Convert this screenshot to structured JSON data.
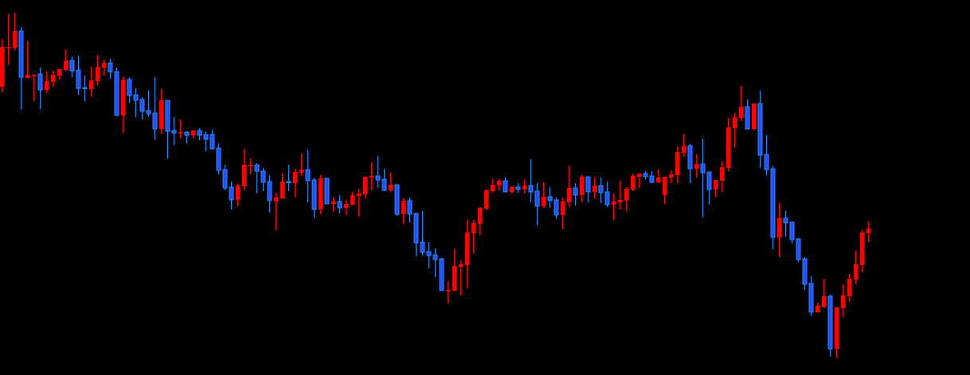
{
  "chart_data": {
    "type": "candlestick",
    "title": "",
    "xlabel": "",
    "ylabel": "",
    "axes_visible": false,
    "grid": false,
    "ylim": [
      29,
      500
    ],
    "background": "#000000",
    "colors": {
      "bullish_body": "#ff0000",
      "bullish_wick": "#ff0000",
      "bearish_body": "#2a4cff",
      "bearish_outline": "#1e8fff",
      "bearish_wick": "#1e8fff"
    },
    "ohlc_fields": [
      "open",
      "high",
      "low",
      "close"
    ],
    "candles": [
      [
        391,
        451,
        384,
        441
      ],
      [
        441,
        482,
        419,
        441
      ],
      [
        440,
        484,
        437,
        461
      ],
      [
        461,
        466,
        362,
        403
      ],
      [
        402,
        448,
        402,
        406
      ],
      [
        405,
        407,
        373,
        406
      ],
      [
        407,
        415,
        363,
        387
      ],
      [
        387,
        410,
        383,
        398
      ],
      [
        397,
        411,
        391,
        406
      ],
      [
        405,
        413,
        400,
        413
      ],
      [
        412,
        438,
        411,
        424
      ],
      [
        424,
        429,
        403,
        411
      ],
      [
        412,
        430,
        381,
        389
      ],
      [
        390,
        405,
        373,
        389
      ],
      [
        388,
        416,
        379,
        399
      ],
      [
        398,
        431,
        393,
        416
      ],
      [
        415,
        425,
        405,
        421
      ],
      [
        421,
        426,
        401,
        410
      ],
      [
        410,
        415,
        355,
        355
      ],
      [
        355,
        404,
        333,
        400
      ],
      [
        400,
        403,
        371,
        380
      ],
      [
        381,
        389,
        353,
        374
      ],
      [
        375,
        378,
        350,
        360
      ],
      [
        361,
        386,
        353,
        357
      ],
      [
        358,
        403,
        324,
        338
      ],
      [
        338,
        388,
        332,
        374
      ],
      [
        374,
        374,
        301,
        335
      ],
      [
        336,
        353,
        318,
        333
      ],
      [
        334,
        350,
        326,
        334
      ],
      [
        334,
        335,
        320,
        330
      ],
      [
        330,
        337,
        327,
        336
      ],
      [
        336,
        339,
        324,
        330
      ],
      [
        331,
        335,
        310,
        325
      ],
      [
        331,
        337,
        313,
        313
      ],
      [
        314,
        320,
        281,
        286
      ],
      [
        287,
        293,
        261,
        264
      ],
      [
        265,
        272,
        237,
        249
      ],
      [
        249,
        269,
        241,
        267
      ],
      [
        266,
        313,
        261,
        293
      ],
      [
        293,
        301,
        281,
        293
      ],
      [
        293,
        295,
        257,
        285
      ],
      [
        285,
        289,
        260,
        271
      ],
      [
        272,
        280,
        233,
        248
      ],
      [
        247,
        258,
        211,
        252
      ],
      [
        251,
        283,
        250,
        272
      ],
      [
        272,
        293,
        260,
        271
      ],
      [
        270,
        288,
        252,
        284
      ],
      [
        283,
        307,
        279,
        287
      ],
      [
        287,
        312,
        246,
        273
      ],
      [
        274,
        276,
        226,
        237
      ],
      [
        237,
        280,
        231,
        276
      ],
      [
        276,
        276,
        244,
        244
      ],
      [
        244,
        252,
        234,
        247
      ],
      [
        247,
        255,
        232,
        239
      ],
      [
        239,
        249,
        230,
        244
      ],
      [
        243,
        259,
        242,
        255
      ],
      [
        254,
        263,
        228,
        257
      ],
      [
        256,
        278,
        251,
        278
      ],
      [
        277,
        296,
        261,
        279
      ],
      [
        279,
        304,
        264,
        274
      ],
      [
        275,
        288,
        260,
        261
      ],
      [
        261,
        283,
        259,
        268
      ],
      [
        268,
        268,
        229,
        231
      ],
      [
        231,
        251,
        219,
        248
      ],
      [
        248,
        252,
        221,
        231
      ],
      [
        232,
        232,
        178,
        195
      ],
      [
        196,
        235,
        179,
        183
      ],
      [
        184,
        196,
        163,
        179
      ],
      [
        180,
        188,
        152,
        174
      ],
      [
        175,
        176,
        135,
        135
      ],
      [
        136,
        147,
        119,
        136
      ],
      [
        135,
        187,
        134,
        166
      ],
      [
        165,
        173,
        129,
        168
      ],
      [
        167,
        224,
        138,
        208
      ],
      [
        207,
        224,
        182,
        220
      ],
      [
        219,
        240,
        205,
        239
      ],
      [
        238,
        262,
        236,
        261
      ],
      [
        260,
        275,
        258,
        268
      ],
      [
        267,
        275,
        261,
        273
      ],
      [
        273,
        277,
        259,
        259
      ],
      [
        259,
        266,
        257,
        265
      ],
      [
        265,
        270,
        258,
        262
      ],
      [
        262,
        275,
        257,
        267
      ],
      [
        267,
        300,
        246,
        259
      ],
      [
        260,
        270,
        217,
        241
      ],
      [
        241,
        271,
        239,
        253
      ],
      [
        253,
        265,
        239,
        248
      ],
      [
        249,
        252,
        225,
        230
      ],
      [
        230,
        252,
        212,
        247
      ],
      [
        246,
        292,
        240,
        264
      ],
      [
        264,
        270,
        242,
        255
      ],
      [
        255,
        280,
        246,
        278
      ],
      [
        278,
        278,
        246,
        259
      ],
      [
        259,
        278,
        251,
        267
      ],
      [
        267,
        277,
        245,
        258
      ],
      [
        259,
        272,
        240,
        243
      ],
      [
        243,
        257,
        224,
        247
      ],
      [
        246,
        273,
        237,
        249
      ],
      [
        248,
        265,
        235,
        263
      ],
      [
        262,
        282,
        260,
        279
      ],
      [
        278,
        282,
        264,
        282
      ],
      [
        282,
        285,
        275,
        278
      ],
      [
        279,
        285,
        270,
        271
      ],
      [
        271,
        287,
        270,
        277
      ],
      [
        255,
        278,
        244,
        278
      ],
      [
        277,
        286,
        270,
        281
      ],
      [
        280,
        316,
        270,
        309
      ],
      [
        308,
        332,
        303,
        317
      ],
      [
        317,
        319,
        270,
        288
      ],
      [
        288,
        306,
        277,
        294
      ],
      [
        294,
        326,
        227,
        283
      ],
      [
        284,
        284,
        243,
        262
      ],
      [
        262,
        274,
        252,
        274
      ],
      [
        273,
        297,
        259,
        290
      ],
      [
        289,
        352,
        285,
        340
      ],
      [
        339,
        358,
        315,
        353
      ],
      [
        352,
        392,
        348,
        366
      ],
      [
        366,
        375,
        338,
        338
      ],
      [
        338,
        370,
        336,
        370
      ],
      [
        370,
        386,
        289,
        305
      ],
      [
        306,
        330,
        280,
        287
      ],
      [
        288,
        292,
        187,
        202
      ],
      [
        202,
        245,
        177,
        226
      ],
      [
        226,
        235,
        203,
        220
      ],
      [
        221,
        221,
        194,
        199
      ],
      [
        200,
        201,
        171,
        174
      ],
      [
        175,
        177,
        136,
        143
      ],
      [
        144,
        153,
        103,
        108
      ],
      [
        108,
        120,
        107,
        116
      ],
      [
        115,
        150,
        113,
        128
      ],
      [
        128,
        130,
        52,
        62
      ],
      [
        62,
        114,
        50,
        114
      ],
      [
        113,
        143,
        102,
        129
      ],
      [
        128,
        156,
        121,
        150
      ],
      [
        149,
        185,
        143,
        168
      ],
      [
        167,
        211,
        158,
        208
      ],
      [
        207,
        222,
        196,
        213
      ]
    ]
  }
}
